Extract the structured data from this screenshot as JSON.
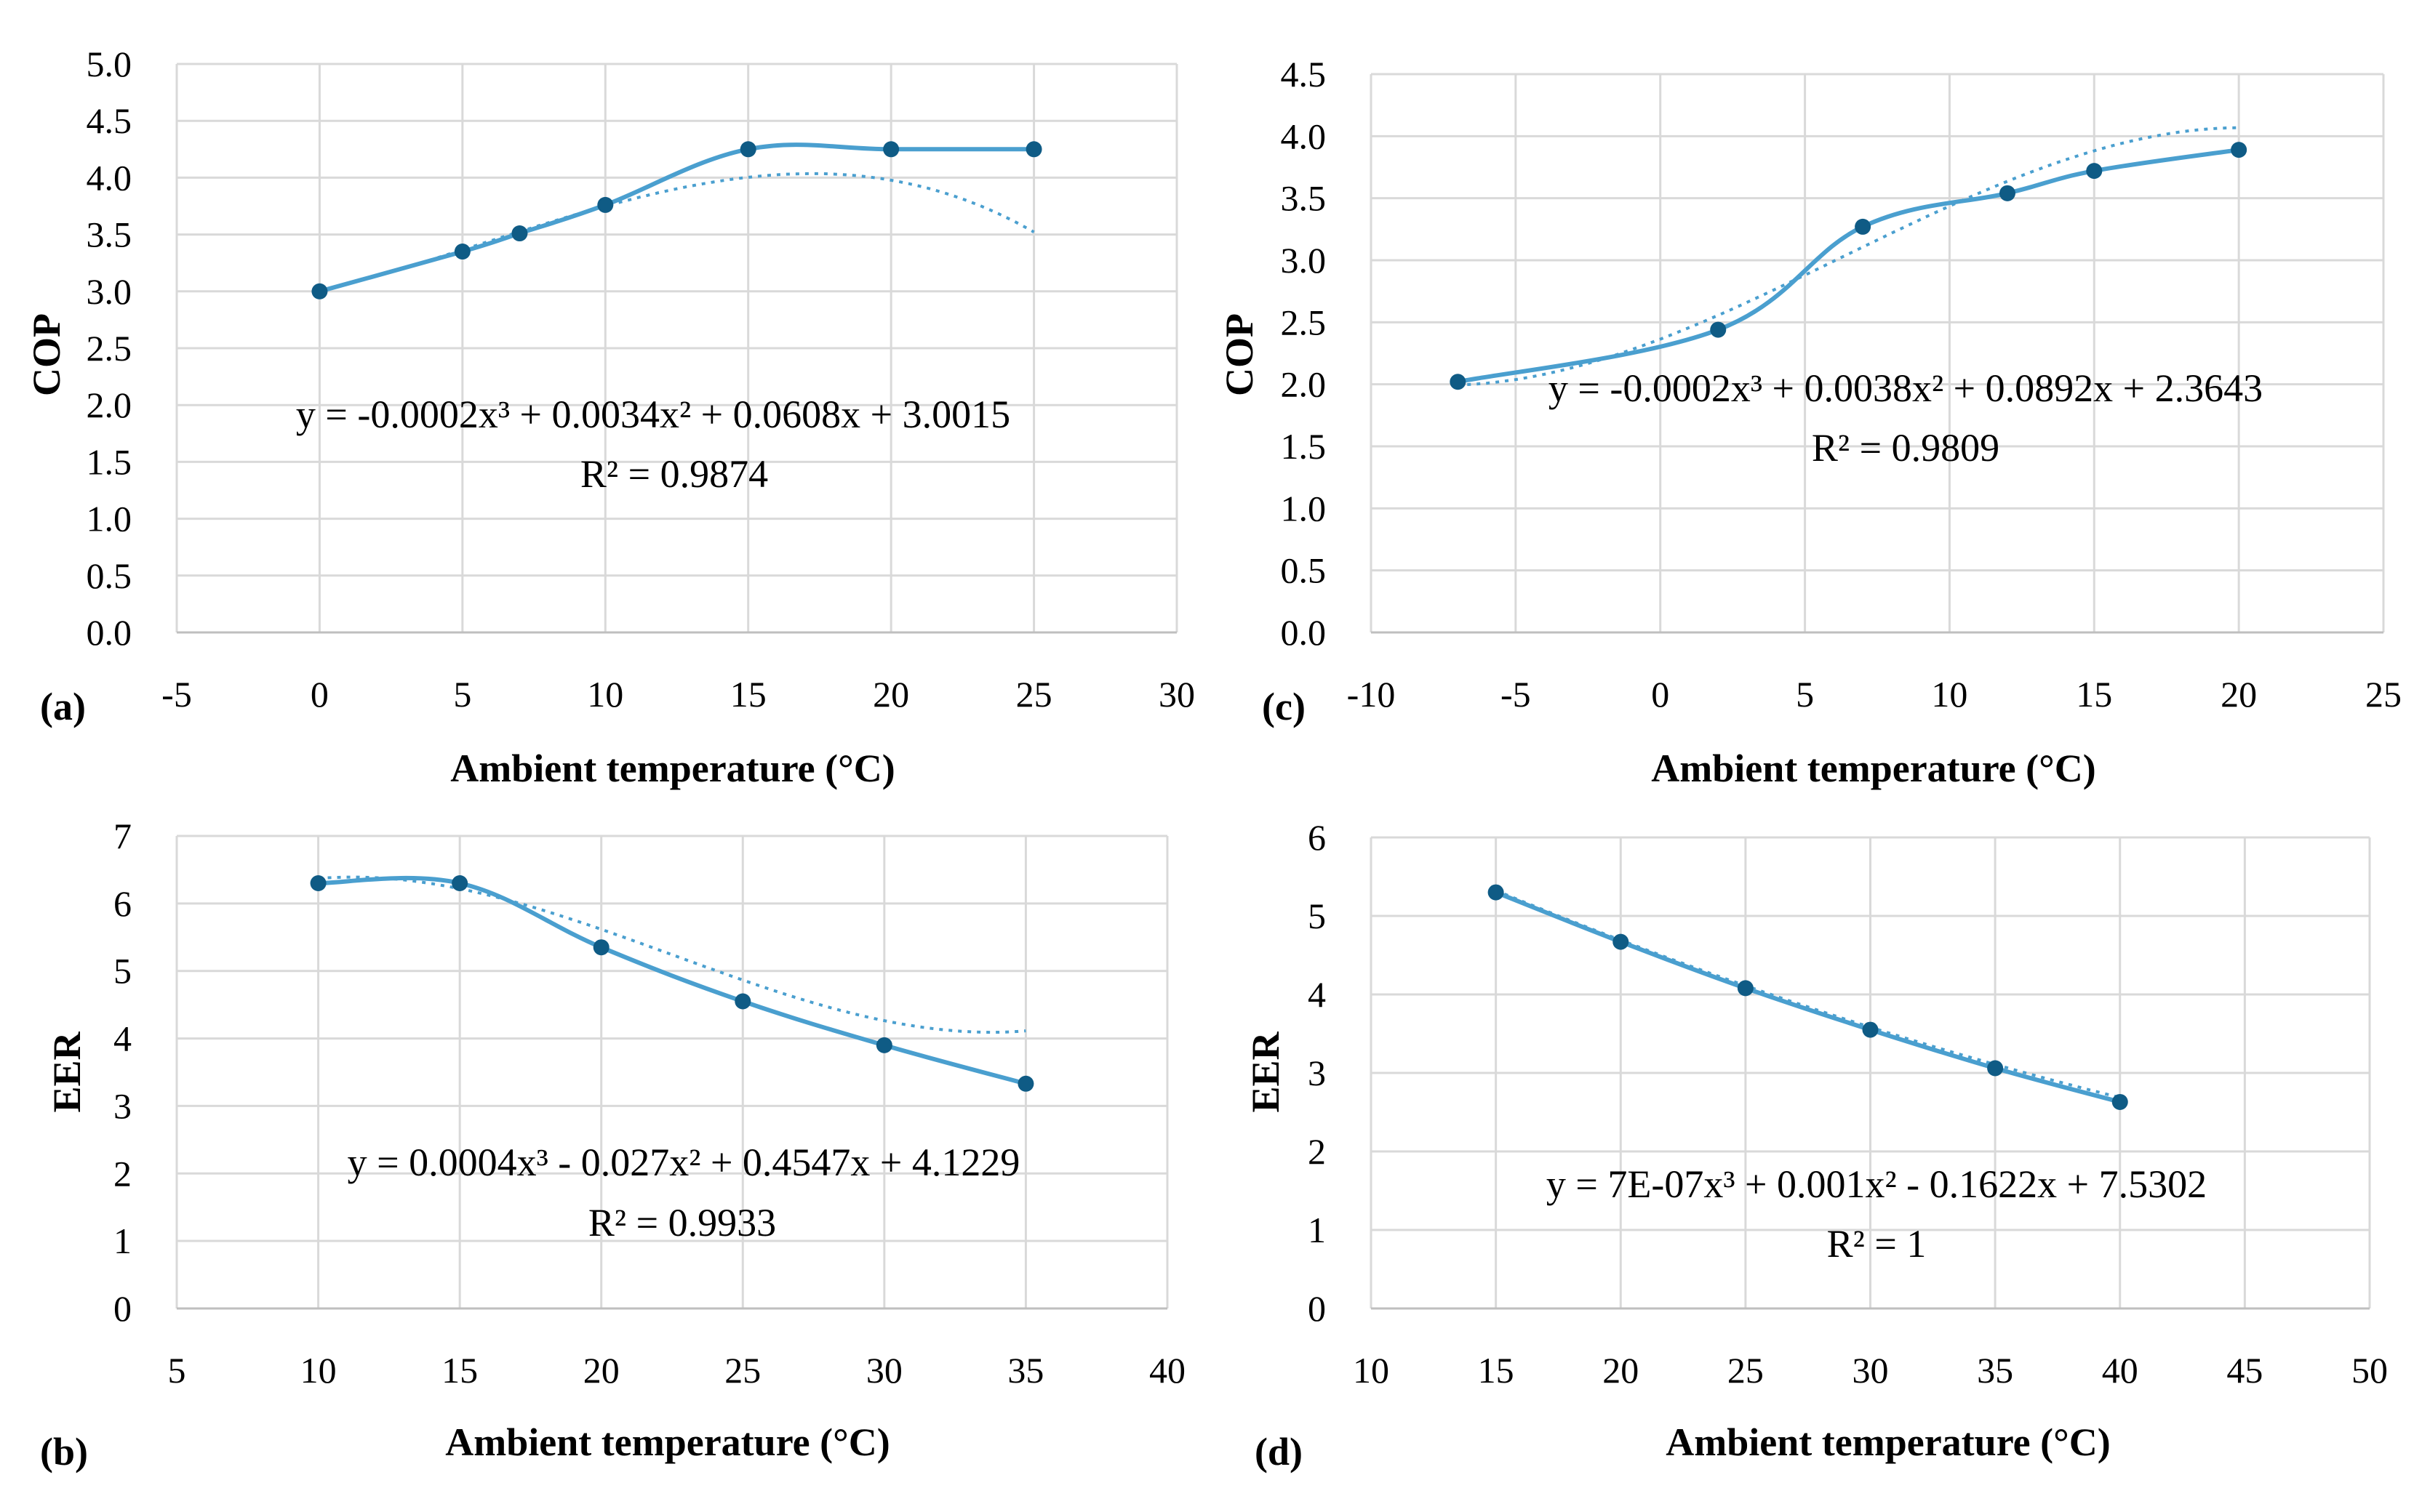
{
  "colors": {
    "curve": "#4a9fcf",
    "trendline": "#4a9fcf",
    "marker": "#0f5b85",
    "grid": "#d9d9d9"
  },
  "chart_data": [
    {
      "id": "a",
      "type": "scatter",
      "panel_label": "(a)",
      "xlabel": "Ambient temperature (°C)",
      "ylabel": "COP",
      "xlim": [
        -5,
        30
      ],
      "xstep": 5,
      "xdecimals": 0,
      "ylim": [
        0,
        5
      ],
      "ystep": 0.5,
      "ydecimals": 1,
      "x": [
        0,
        5,
        7,
        10,
        15,
        20,
        25
      ],
      "y": [
        3.0,
        3.35,
        3.51,
        3.76,
        4.25,
        4.25,
        4.25
      ],
      "trendline": {
        "type": "poly3",
        "coefficients": [
          -0.0002,
          0.0034,
          0.0608,
          3.0015
        ]
      },
      "equation": "y = -0.0002x³ + 0.0034x² + 0.0608x + 3.0015",
      "r_squared": "R² = 0.9874"
    },
    {
      "id": "b",
      "type": "scatter",
      "panel_label": "(b)",
      "xlabel": "Ambient temperature (°C)",
      "ylabel": "EER",
      "xlim": [
        5,
        40
      ],
      "xstep": 5,
      "xdecimals": 0,
      "ylim": [
        0,
        7
      ],
      "ystep": 1,
      "ydecimals": 0,
      "x": [
        10,
        15,
        20,
        25,
        30,
        35
      ],
      "y": [
        6.3,
        6.3,
        5.35,
        4.55,
        3.9,
        3.33
      ],
      "trendline": {
        "type": "poly3",
        "coefficients": [
          0.0004,
          -0.027,
          0.4547,
          4.1229
        ]
      },
      "equation": "y = 0.0004x³ - 0.027x² + 0.4547x + 4.1229",
      "r_squared": "R² = 0.9933"
    },
    {
      "id": "c",
      "type": "scatter",
      "panel_label": "(c)",
      "xlabel": "Ambient temperature (°C)",
      "ylabel": "COP",
      "xlim": [
        -10,
        25
      ],
      "xstep": 5,
      "xdecimals": 0,
      "ylim": [
        0,
        4.5
      ],
      "ystep": 0.5,
      "ydecimals": 1,
      "x": [
        -7,
        2,
        7,
        12,
        15,
        20
      ],
      "y": [
        2.02,
        2.44,
        3.27,
        3.54,
        3.72,
        3.89
      ],
      "trendline": {
        "type": "poly3",
        "coefficients": [
          -0.0002,
          0.0038,
          0.0892,
          2.3643
        ]
      },
      "equation": "y = -0.0002x³ + 0.0038x² + 0.0892x + 2.3643",
      "r_squared": "R² = 0.9809"
    },
    {
      "id": "d",
      "type": "scatter",
      "panel_label": "(d)",
      "xlabel": "Ambient temperature (°C)",
      "ylabel": "EER",
      "xlim": [
        10,
        50
      ],
      "xstep": 5,
      "xdecimals": 0,
      "ylim": [
        0,
        6
      ],
      "ystep": 1,
      "ydecimals": 0,
      "x": [
        15,
        20,
        25,
        30,
        35,
        40
      ],
      "y": [
        5.3,
        4.67,
        4.08,
        3.55,
        3.06,
        2.63
      ],
      "trendline": {
        "type": "poly3",
        "coefficients": [
          7e-07,
          0.001,
          -0.1622,
          7.5302
        ]
      },
      "equation": "y = 7E-07x³ + 0.001x² - 0.1622x + 7.5302",
      "r_squared": "R² = 1"
    }
  ]
}
